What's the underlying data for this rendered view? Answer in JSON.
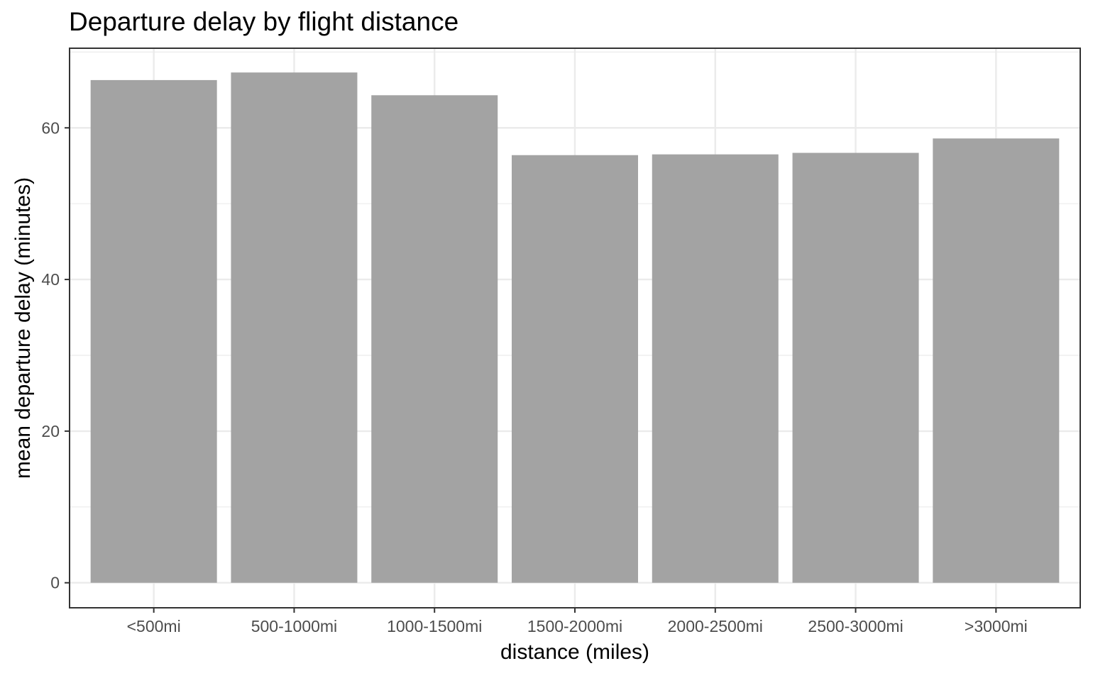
{
  "chart_data": {
    "type": "bar",
    "title": "Departure delay by flight distance",
    "xlabel": "distance (miles)",
    "ylabel": "mean departure delay (minutes)",
    "categories": [
      "<500mi",
      "500-1000mi",
      "1000-1500mi",
      "1500-2000mi",
      "2000-2500mi",
      "2500-3000mi",
      ">3000mi"
    ],
    "values": [
      66.3,
      67.3,
      64.3,
      56.4,
      56.5,
      56.7,
      58.6
    ],
    "ylim": [
      -3.3,
      70.5
    ],
    "yticks": [
      0,
      20,
      40,
      60
    ],
    "ytick_labels": [
      "0",
      "20",
      "40",
      "60"
    ],
    "grid": true,
    "bar_color": "#a0a0a0",
    "grid_color": "#ebebeb",
    "panel_border_color": "#333333",
    "legend": "none"
  }
}
